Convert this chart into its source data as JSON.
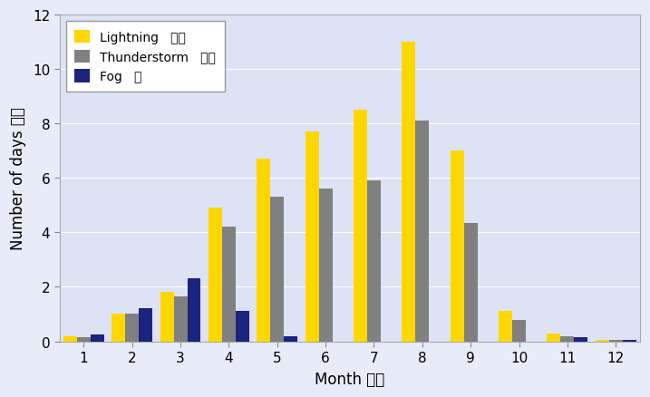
{
  "months": [
    1,
    2,
    3,
    4,
    5,
    6,
    7,
    8,
    9,
    10,
    11,
    12
  ],
  "month_labels": [
    "1",
    "2",
    "3",
    "4",
    "5",
    "6",
    "7",
    "8",
    "9",
    "10",
    "11",
    "12"
  ],
  "lightning": [
    0.2,
    1.0,
    1.8,
    4.9,
    6.7,
    7.7,
    8.5,
    11.0,
    7.0,
    1.1,
    0.3,
    0.05
  ],
  "thunderstorm": [
    0.15,
    1.0,
    1.65,
    4.2,
    5.3,
    5.6,
    5.9,
    8.1,
    4.35,
    0.8,
    0.2,
    0.05
  ],
  "fog": [
    0.25,
    1.2,
    2.3,
    1.1,
    0.2,
    0.0,
    0.0,
    0.0,
    0.0,
    0.0,
    0.15,
    0.05
  ],
  "lightning_color": "#FFD700",
  "thunderstorm_color": "#808080",
  "fog_color": "#1a237e",
  "bg_color_top": "#ffffff",
  "bg_color_plot": "#dde3f5",
  "legend_labels": [
    "Lightning   閃電",
    "Thunderstorm   雷暴",
    "Fog   霧"
  ],
  "xlabel": "Month 月份",
  "ylabel": "Number of days 日數",
  "ylim": [
    0,
    12
  ],
  "yticks": [
    0,
    2,
    4,
    6,
    8,
    10,
    12
  ],
  "bar_width": 0.28,
  "title_fontsize": 11,
  "axis_fontsize": 12,
  "legend_fontsize": 10
}
